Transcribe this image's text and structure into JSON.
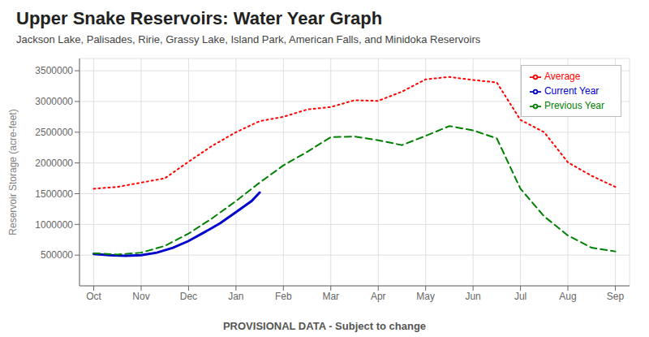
{
  "chart_data": {
    "type": "line",
    "title": "Upper Snake Reservoirs: Water Year Graph",
    "subtitle": "Jackson Lake, Palisades, Ririe, Grassy Lake, Island Park, American Falls, and Minidoka Reservoirs",
    "ylabel": "Reservoir Storage (acre-feet)",
    "footnote": "PROVISIONAL DATA - Subject to change",
    "xlim": [
      -0.3,
      11.3
    ],
    "xticks": [
      {
        "value": 0,
        "label": "Oct"
      },
      {
        "value": 1,
        "label": "Nov"
      },
      {
        "value": 2,
        "label": "Dec"
      },
      {
        "value": 3,
        "label": "Jan"
      },
      {
        "value": 4,
        "label": "Feb"
      },
      {
        "value": 5,
        "label": "Mar"
      },
      {
        "value": 6,
        "label": "Apr"
      },
      {
        "value": 7,
        "label": "May"
      },
      {
        "value": 8,
        "label": "Jun"
      },
      {
        "value": 9,
        "label": "Jul"
      },
      {
        "value": 10,
        "label": "Aug"
      },
      {
        "value": 11,
        "label": "Sep"
      }
    ],
    "ylim": [
      0,
      3700000
    ],
    "yticks": [
      500000,
      1000000,
      1500000,
      2000000,
      2500000,
      3000000,
      3500000
    ],
    "grid": true,
    "legend": "upper right",
    "series": [
      {
        "name": "Current Year",
        "color": "#0000cc",
        "line_style": "solid",
        "x": [
          0,
          0.33,
          0.67,
          1.0,
          1.33,
          1.67,
          2.0,
          2.33,
          2.67,
          3.0,
          3.33,
          3.5
        ],
        "values": [
          520000,
          500000,
          490000,
          500000,
          540000,
          620000,
          730000,
          870000,
          1020000,
          1200000,
          1380000,
          1520000
        ]
      },
      {
        "name": "Previous Year",
        "color": "#008000",
        "line_style": "dashed",
        "x": [
          0,
          0.5,
          1.0,
          1.5,
          2.0,
          2.5,
          3.0,
          3.5,
          4.0,
          4.5,
          5.0,
          5.5,
          6.0,
          6.5,
          7.0,
          7.5,
          8.0,
          8.5,
          9.0,
          9.5,
          10.0,
          10.5,
          11.0
        ],
        "values": [
          530000,
          510000,
          540000,
          650000,
          850000,
          1100000,
          1380000,
          1680000,
          1960000,
          2180000,
          2420000,
          2430000,
          2370000,
          2290000,
          2440000,
          2600000,
          2530000,
          2400000,
          1580000,
          1130000,
          820000,
          620000,
          560000
        ]
      },
      {
        "name": "Average",
        "color": "#ff0000",
        "line_style": "dotted",
        "x": [
          0,
          0.5,
          1.0,
          1.5,
          2.0,
          2.5,
          3.0,
          3.5,
          4.0,
          4.5,
          5.0,
          5.5,
          6.0,
          6.5,
          7.0,
          7.5,
          8.0,
          8.5,
          9.0,
          9.5,
          10.0,
          10.5,
          11.0
        ],
        "values": [
          1580000,
          1610000,
          1680000,
          1750000,
          2020000,
          2280000,
          2500000,
          2680000,
          2750000,
          2870000,
          2910000,
          3020000,
          3010000,
          3160000,
          3360000,
          3400000,
          3350000,
          3310000,
          2700000,
          2500000,
          2010000,
          1790000,
          1610000
        ]
      }
    ]
  }
}
